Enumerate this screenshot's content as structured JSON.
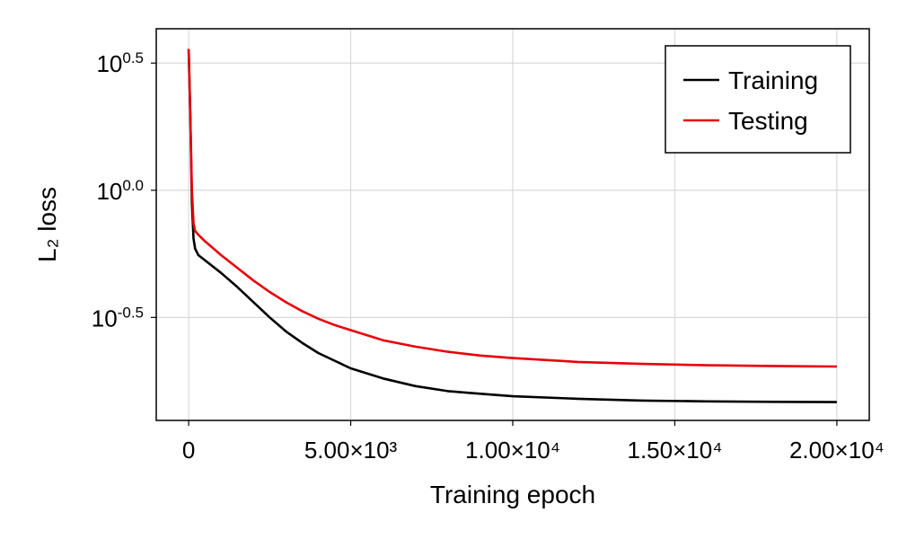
{
  "chart_data": {
    "type": "line",
    "title": "",
    "xlabel": "Training epoch",
    "ylabel": "L₂ loss",
    "y_scale": "log10",
    "grid": true,
    "legend_position": "top-right",
    "xlim": [
      -1000,
      21000
    ],
    "ylim_log10": [
      -0.905,
      0.635
    ],
    "x_ticks": [
      {
        "value": 0,
        "label": "0"
      },
      {
        "value": 5000,
        "label": "5.00×10³"
      },
      {
        "value": 10000,
        "label": "1.00×10⁴"
      },
      {
        "value": 15000,
        "label": "1.50×10⁴"
      },
      {
        "value": 20000,
        "label": "2.00×10⁴"
      }
    ],
    "y_ticks": [
      {
        "value_log10": 0.5,
        "base": "10",
        "exponent": "0.5"
      },
      {
        "value_log10": 0.0,
        "base": "10",
        "exponent": "0.0"
      },
      {
        "value_log10": -0.5,
        "base": "10",
        "exponent": "-0.5"
      }
    ],
    "series": [
      {
        "name": "Training",
        "color": "#000000",
        "x": [
          0,
          50,
          100,
          150,
          200,
          300,
          500,
          1000,
          1500,
          2000,
          2500,
          3000,
          3500,
          4000,
          4500,
          5000,
          6000,
          7000,
          8000,
          9000,
          10000,
          12000,
          14000,
          16000,
          18000,
          20000
        ],
        "log10_y": [
          0.555,
          0.3,
          -0.05,
          -0.19,
          -0.23,
          -0.255,
          -0.275,
          -0.325,
          -0.38,
          -0.44,
          -0.5,
          -0.555,
          -0.6,
          -0.64,
          -0.67,
          -0.7,
          -0.74,
          -0.77,
          -0.79,
          -0.8,
          -0.81,
          -0.82,
          -0.827,
          -0.83,
          -0.832,
          -0.833
        ]
      },
      {
        "name": "Testing",
        "color": "#e8000b",
        "x": [
          0,
          50,
          100,
          150,
          200,
          300,
          500,
          1000,
          1500,
          2000,
          2500,
          3000,
          3500,
          4000,
          4500,
          5000,
          6000,
          7000,
          8000,
          9000,
          10000,
          12000,
          14000,
          16000,
          18000,
          20000
        ],
        "log10_y": [
          0.555,
          0.3,
          0.0,
          -0.13,
          -0.16,
          -0.175,
          -0.2,
          -0.255,
          -0.305,
          -0.355,
          -0.4,
          -0.44,
          -0.475,
          -0.505,
          -0.53,
          -0.55,
          -0.59,
          -0.615,
          -0.635,
          -0.65,
          -0.66,
          -0.675,
          -0.683,
          -0.688,
          -0.691,
          -0.693
        ]
      }
    ]
  }
}
